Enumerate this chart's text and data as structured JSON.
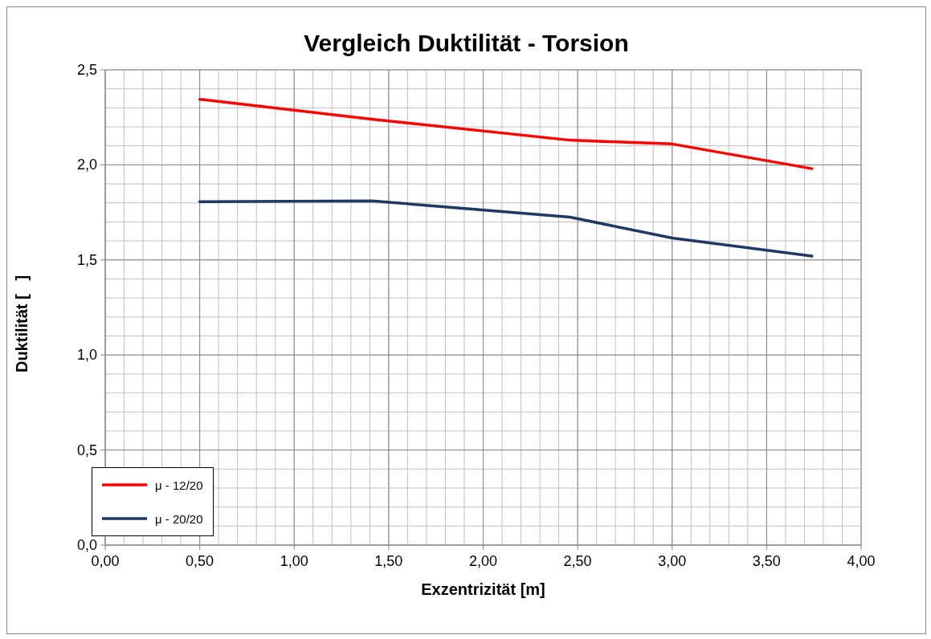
{
  "chart_data": {
    "type": "line",
    "title": "Vergleich Duktilität - Torsion",
    "xlabel": "Exzentrizität [m]",
    "ylabel": "Duktilität [   ]",
    "x": [
      0.5,
      1.41,
      2.46,
      3.0,
      3.74
    ],
    "series": [
      {
        "name": "μ - 12/20",
        "color": "#ff0000",
        "values": [
          2.345,
          2.24,
          2.13,
          2.11,
          1.98
        ]
      },
      {
        "name": "μ - 20/20",
        "color": "#1f3864",
        "values": [
          1.806,
          1.811,
          1.725,
          1.615,
          1.52
        ]
      }
    ],
    "xlim": [
      0,
      4
    ],
    "ylim": [
      0,
      2.5
    ],
    "xticks": [
      {
        "value": 0,
        "label": "0,00"
      },
      {
        "value": 0.1,
        "label": null
      },
      {
        "value": 0.2,
        "label": null
      },
      {
        "value": 0.3,
        "label": null
      },
      {
        "value": 0.4,
        "label": null
      },
      {
        "value": 0.5,
        "label": "0,50"
      },
      {
        "value": 0.6,
        "label": null
      },
      {
        "value": 0.7,
        "label": null
      },
      {
        "value": 0.8,
        "label": null
      },
      {
        "value": 0.9,
        "label": null
      },
      {
        "value": 1,
        "label": "1,00"
      },
      {
        "value": 1.1,
        "label": null
      },
      {
        "value": 1.2,
        "label": null
      },
      {
        "value": 1.3,
        "label": null
      },
      {
        "value": 1.4,
        "label": null
      },
      {
        "value": 1.5,
        "label": "1,50"
      },
      {
        "value": 1.6,
        "label": null
      },
      {
        "value": 1.7,
        "label": null
      },
      {
        "value": 1.8,
        "label": null
      },
      {
        "value": 1.9,
        "label": null
      },
      {
        "value": 2,
        "label": "2,00"
      },
      {
        "value": 2.1,
        "label": null
      },
      {
        "value": 2.2,
        "label": null
      },
      {
        "value": 2.3,
        "label": null
      },
      {
        "value": 2.4,
        "label": null
      },
      {
        "value": 2.5,
        "label": "2,50"
      },
      {
        "value": 2.6,
        "label": null
      },
      {
        "value": 2.7,
        "label": null
      },
      {
        "value": 2.8,
        "label": null
      },
      {
        "value": 2.9,
        "label": null
      },
      {
        "value": 3,
        "label": "3,00"
      },
      {
        "value": 3.1,
        "label": null
      },
      {
        "value": 3.2,
        "label": null
      },
      {
        "value": 3.3,
        "label": null
      },
      {
        "value": 3.4,
        "label": null
      },
      {
        "value": 3.5,
        "label": "3,50"
      },
      {
        "value": 3.6,
        "label": null
      },
      {
        "value": 3.7,
        "label": null
      },
      {
        "value": 3.8,
        "label": null
      },
      {
        "value": 3.9,
        "label": null
      },
      {
        "value": 4,
        "label": "4,00"
      }
    ],
    "yticks": [
      {
        "value": 0,
        "label": "0,0"
      },
      {
        "value": 0.1,
        "label": null
      },
      {
        "value": 0.2,
        "label": null
      },
      {
        "value": 0.3,
        "label": null
      },
      {
        "value": 0.4,
        "label": null
      },
      {
        "value": 0.5,
        "label": "0,5"
      },
      {
        "value": 0.6,
        "label": null
      },
      {
        "value": 0.7,
        "label": null
      },
      {
        "value": 0.8,
        "label": null
      },
      {
        "value": 0.9,
        "label": null
      },
      {
        "value": 1,
        "label": "1,0"
      },
      {
        "value": 1.1,
        "label": null
      },
      {
        "value": 1.2,
        "label": null
      },
      {
        "value": 1.3,
        "label": null
      },
      {
        "value": 1.4,
        "label": null
      },
      {
        "value": 1.5,
        "label": "1,5"
      },
      {
        "value": 1.6,
        "label": null
      },
      {
        "value": 1.7,
        "label": null
      },
      {
        "value": 1.8,
        "label": null
      },
      {
        "value": 1.9,
        "label": null
      },
      {
        "value": 2,
        "label": "2,0"
      },
      {
        "value": 2.1,
        "label": null
      },
      {
        "value": 2.2,
        "label": null
      },
      {
        "value": 2.3,
        "label": null
      },
      {
        "value": 2.4,
        "label": null
      },
      {
        "value": 2.5,
        "label": "2,5"
      }
    ],
    "grid": true,
    "legend": "bottom left",
    "marker": "none",
    "line_style": "solid"
  }
}
